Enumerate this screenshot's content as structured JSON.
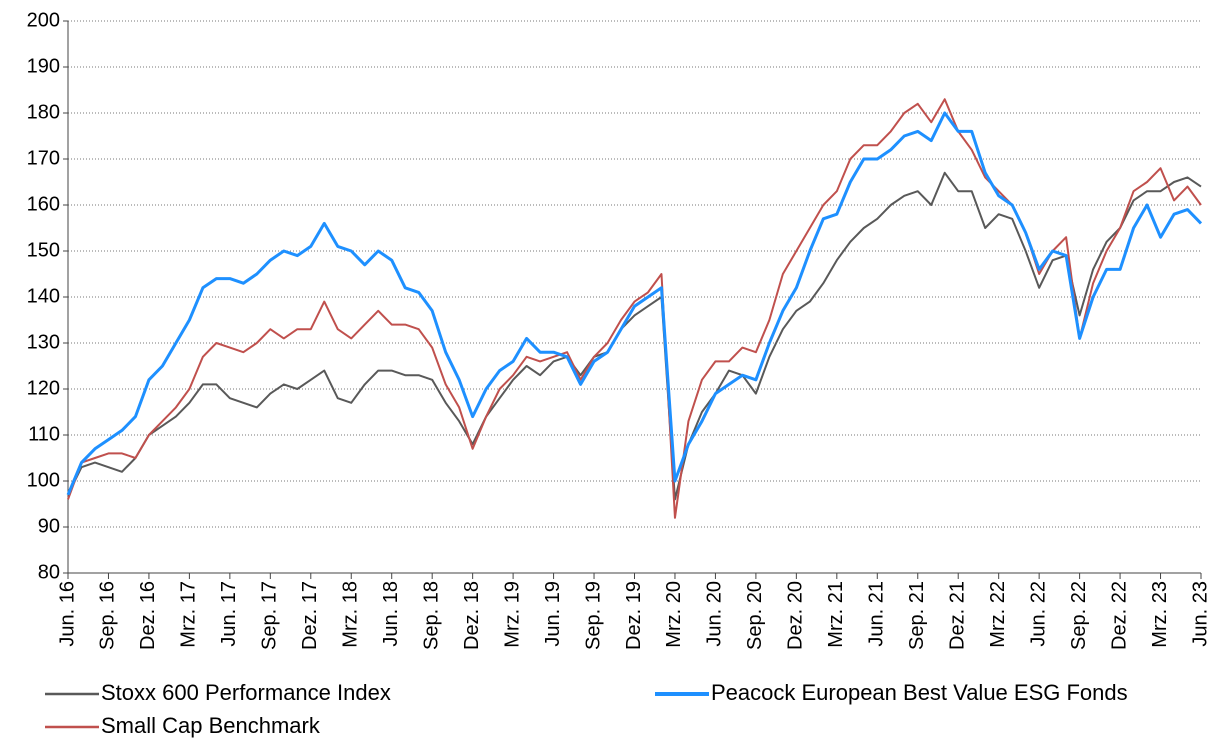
{
  "chart_data": {
    "type": "line",
    "categories": [
      "Jun. 16",
      null,
      null,
      "Sep. 16",
      null,
      null,
      "Dez. 16",
      null,
      null,
      "Mrz. 17",
      null,
      null,
      "Jun. 17",
      null,
      null,
      "Sep. 17",
      null,
      null,
      "Dez. 17",
      null,
      null,
      "Mrz. 18",
      null,
      null,
      "Jun. 18",
      null,
      null,
      "Sep. 18",
      null,
      null,
      "Dez. 18",
      null,
      null,
      "Mrz. 19",
      null,
      null,
      "Jun. 19",
      null,
      null,
      "Sep. 19",
      null,
      null,
      "Dez. 19",
      null,
      null,
      "Mrz. 20",
      null,
      null,
      "Jun. 20",
      null,
      null,
      "Sep. 20",
      null,
      null,
      "Dez. 20",
      null,
      null,
      "Mrz. 21",
      null,
      null,
      "Jun. 21",
      null,
      null,
      "Sep. 21",
      null,
      null,
      "Dez. 21",
      null,
      null,
      "Mrz. 22",
      null,
      null,
      "Jun. 22",
      null,
      null,
      "Sep. 22",
      null,
      null,
      "Dez. 22",
      null,
      null,
      "Mrz. 23",
      null,
      null,
      "Jun. 23"
    ],
    "series": [
      {
        "name": "Stoxx 600 Performance Index",
        "color": "#595959",
        "values": [
          97,
          103,
          104,
          103,
          102,
          105,
          110,
          112,
          114,
          117,
          121,
          121,
          118,
          117,
          116,
          119,
          121,
          120,
          122,
          124,
          118,
          117,
          121,
          124,
          124,
          123,
          123,
          122,
          117,
          113,
          108,
          114,
          118,
          122,
          125,
          123,
          126,
          127,
          123,
          127,
          128,
          133,
          136,
          138,
          140,
          96,
          108,
          115,
          119,
          124,
          123,
          119,
          127,
          133,
          137,
          139,
          143,
          148,
          152,
          155,
          157,
          160,
          162,
          163,
          160,
          167,
          163,
          163,
          155,
          158,
          157,
          150,
          142,
          148,
          149,
          136,
          146,
          152,
          155,
          161,
          163,
          163,
          165,
          166,
          164
        ]
      },
      {
        "name": "Peacock European Best Value ESG Fonds",
        "color": "#1e90ff",
        "values": [
          97,
          104,
          107,
          109,
          111,
          114,
          122,
          125,
          130,
          135,
          142,
          144,
          144,
          143,
          145,
          148,
          150,
          149,
          151,
          156,
          151,
          150,
          147,
          150,
          148,
          142,
          141,
          137,
          128,
          122,
          114,
          120,
          124,
          126,
          131,
          128,
          128,
          127,
          121,
          126,
          128,
          133,
          138,
          140,
          142,
          100,
          108,
          113,
          119,
          121,
          123,
          122,
          130,
          137,
          142,
          150,
          157,
          158,
          165,
          170,
          170,
          172,
          175,
          176,
          174,
          180,
          176,
          176,
          167,
          162,
          160,
          154,
          146,
          150,
          149,
          131,
          140,
          146,
          146,
          155,
          160,
          153,
          158,
          159,
          156
        ]
      },
      {
        "name": "Small Cap Benchmark",
        "color": "#c0504d",
        "values": [
          96,
          104,
          105,
          106,
          106,
          105,
          110,
          113,
          116,
          120,
          127,
          130,
          129,
          128,
          130,
          133,
          131,
          133,
          133,
          139,
          133,
          131,
          134,
          137,
          134,
          134,
          133,
          129,
          121,
          116,
          107,
          114,
          120,
          123,
          127,
          126,
          127,
          128,
          122,
          127,
          130,
          135,
          139,
          141,
          145,
          92,
          113,
          122,
          126,
          126,
          129,
          128,
          135,
          145,
          150,
          155,
          160,
          163,
          170,
          173,
          173,
          176,
          180,
          182,
          178,
          183,
          176,
          172,
          166,
          163,
          160,
          154,
          145,
          150,
          153,
          131,
          143,
          150,
          155,
          163,
          165,
          168,
          161,
          164,
          160
        ]
      }
    ],
    "ylim": [
      80,
      200
    ],
    "yticks": [
      80,
      90,
      100,
      110,
      120,
      130,
      140,
      150,
      160,
      170,
      180,
      190,
      200
    ],
    "grid": true
  }
}
